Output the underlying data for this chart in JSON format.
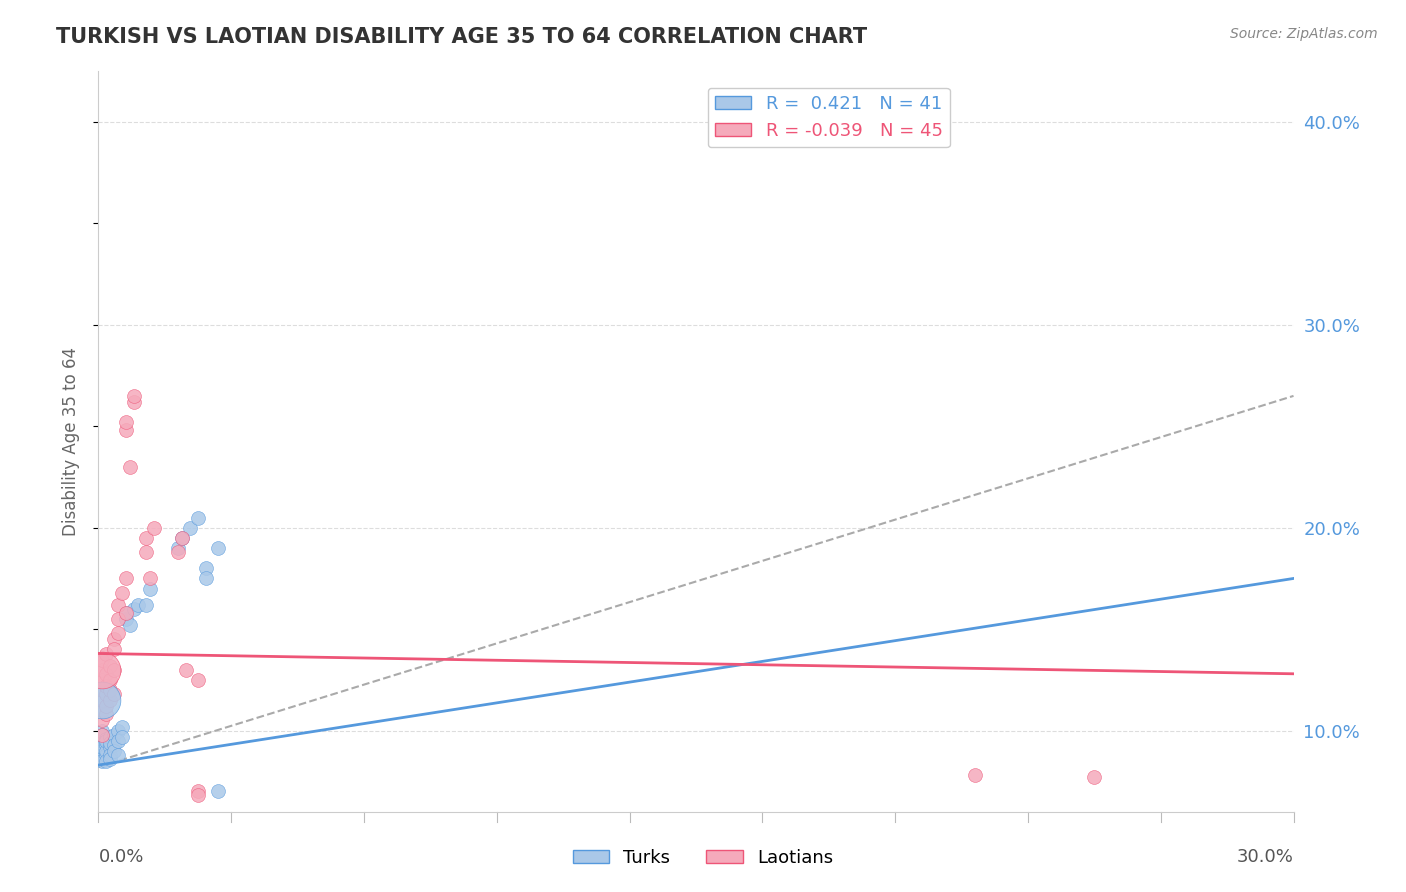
{
  "title": "TURKISH VS LAOTIAN DISABILITY AGE 35 TO 64 CORRELATION CHART",
  "source_text": "Source: ZipAtlas.com",
  "ylabel": "Disability Age 35 to 64",
  "ylabel_right_vals": [
    0.1,
    0.2,
    0.3,
    0.4
  ],
  "xmin": 0.0,
  "xmax": 0.3,
  "ymin": 0.06,
  "ymax": 0.425,
  "turks_R": 0.421,
  "turks_N": 41,
  "laotians_R": -0.039,
  "laotians_N": 45,
  "turks_color": "#aac8e8",
  "laotians_color": "#f5aabb",
  "turks_line_color": "#5599dd",
  "laotians_line_color": "#ee5577",
  "dashed_line_color": "#aaaaaa",
  "background_color": "#ffffff",
  "grid_color": "#dddddd",
  "turks_line": [
    0.0,
    0.083,
    0.3,
    0.175
  ],
  "laotians_line": [
    0.0,
    0.138,
    0.3,
    0.128
  ],
  "dashed_line": [
    0.0,
    0.082,
    0.3,
    0.265
  ],
  "turks_dots": [
    [
      0.001,
      0.095
    ],
    [
      0.001,
      0.09
    ],
    [
      0.001,
      0.088
    ],
    [
      0.001,
      0.092
    ],
    [
      0.001,
      0.085
    ],
    [
      0.001,
      0.1
    ],
    [
      0.001,
      0.098
    ],
    [
      0.002,
      0.093
    ],
    [
      0.002,
      0.096
    ],
    [
      0.002,
      0.088
    ],
    [
      0.002,
      0.09
    ],
    [
      0.002,
      0.085
    ],
    [
      0.002,
      0.095
    ],
    [
      0.003,
      0.092
    ],
    [
      0.003,
      0.097
    ],
    [
      0.003,
      0.088
    ],
    [
      0.003,
      0.094
    ],
    [
      0.003,
      0.086
    ],
    [
      0.004,
      0.098
    ],
    [
      0.004,
      0.093
    ],
    [
      0.004,
      0.09
    ],
    [
      0.005,
      0.1
    ],
    [
      0.005,
      0.095
    ],
    [
      0.005,
      0.088
    ],
    [
      0.006,
      0.102
    ],
    [
      0.006,
      0.097
    ],
    [
      0.007,
      0.155
    ],
    [
      0.007,
      0.158
    ],
    [
      0.008,
      0.152
    ],
    [
      0.009,
      0.16
    ],
    [
      0.01,
      0.162
    ],
    [
      0.012,
      0.162
    ],
    [
      0.013,
      0.17
    ],
    [
      0.02,
      0.19
    ],
    [
      0.021,
      0.195
    ],
    [
      0.027,
      0.18
    ],
    [
      0.027,
      0.175
    ],
    [
      0.03,
      0.19
    ],
    [
      0.023,
      0.2
    ],
    [
      0.025,
      0.205
    ],
    [
      0.03,
      0.07
    ]
  ],
  "laotians_dots": [
    [
      0.001,
      0.098
    ],
    [
      0.001,
      0.105
    ],
    [
      0.001,
      0.11
    ],
    [
      0.001,
      0.115
    ],
    [
      0.001,
      0.12
    ],
    [
      0.001,
      0.125
    ],
    [
      0.001,
      0.13
    ],
    [
      0.001,
      0.135
    ],
    [
      0.002,
      0.108
    ],
    [
      0.002,
      0.112
    ],
    [
      0.002,
      0.118
    ],
    [
      0.002,
      0.122
    ],
    [
      0.002,
      0.128
    ],
    [
      0.002,
      0.138
    ],
    [
      0.003,
      0.115
    ],
    [
      0.003,
      0.12
    ],
    [
      0.003,
      0.125
    ],
    [
      0.003,
      0.132
    ],
    [
      0.004,
      0.13
    ],
    [
      0.004,
      0.118
    ],
    [
      0.004,
      0.145
    ],
    [
      0.004,
      0.14
    ],
    [
      0.005,
      0.155
    ],
    [
      0.005,
      0.148
    ],
    [
      0.005,
      0.162
    ],
    [
      0.006,
      0.168
    ],
    [
      0.007,
      0.158
    ],
    [
      0.007,
      0.175
    ],
    [
      0.007,
      0.248
    ],
    [
      0.007,
      0.252
    ],
    [
      0.008,
      0.23
    ],
    [
      0.009,
      0.262
    ],
    [
      0.009,
      0.265
    ],
    [
      0.012,
      0.188
    ],
    [
      0.012,
      0.195
    ],
    [
      0.013,
      0.175
    ],
    [
      0.014,
      0.2
    ],
    [
      0.02,
      0.188
    ],
    [
      0.021,
      0.195
    ],
    [
      0.022,
      0.13
    ],
    [
      0.025,
      0.125
    ],
    [
      0.025,
      0.07
    ],
    [
      0.025,
      0.068
    ],
    [
      0.22,
      0.078
    ],
    [
      0.25,
      0.077
    ]
  ],
  "turks_large_dot": [
    0.001,
    0.115
  ],
  "laotians_large_dot": [
    0.001,
    0.13
  ]
}
